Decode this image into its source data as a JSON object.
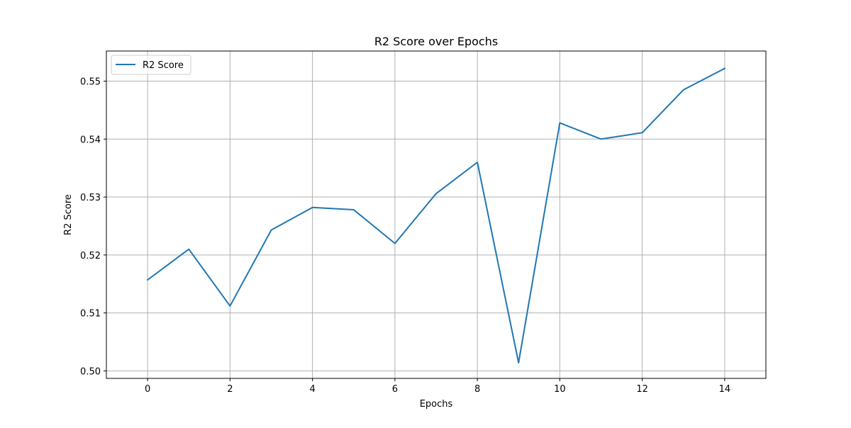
{
  "chart_data": {
    "type": "line",
    "title": "R2 Score over Epochs",
    "xlabel": "Epochs",
    "ylabel": "R2 Score",
    "xlim": [
      -1,
      15
    ],
    "ylim": [
      0.4987,
      0.5552
    ],
    "xticks": [
      0,
      2,
      4,
      6,
      8,
      10,
      12,
      14
    ],
    "xtick_labels": [
      "0",
      "2",
      "4",
      "6",
      "8",
      "10",
      "12",
      "14"
    ],
    "yticks": [
      0.5,
      0.51,
      0.52,
      0.53,
      0.54,
      0.55
    ],
    "ytick_labels": [
      "0.50",
      "0.51",
      "0.52",
      "0.53",
      "0.54",
      "0.55"
    ],
    "grid": true,
    "legend_position": "top-left",
    "series": [
      {
        "name": "R2 Score",
        "color": "#1f77b4",
        "x": [
          0,
          1,
          2,
          3,
          4,
          5,
          6,
          7,
          8,
          9,
          10,
          11,
          12,
          13,
          14
        ],
        "y": [
          0.5157,
          0.521,
          0.5112,
          0.5243,
          0.5282,
          0.5278,
          0.522,
          0.5306,
          0.536,
          0.5014,
          0.5428,
          0.54,
          0.5411,
          0.5485,
          0.5522
        ]
      }
    ]
  }
}
